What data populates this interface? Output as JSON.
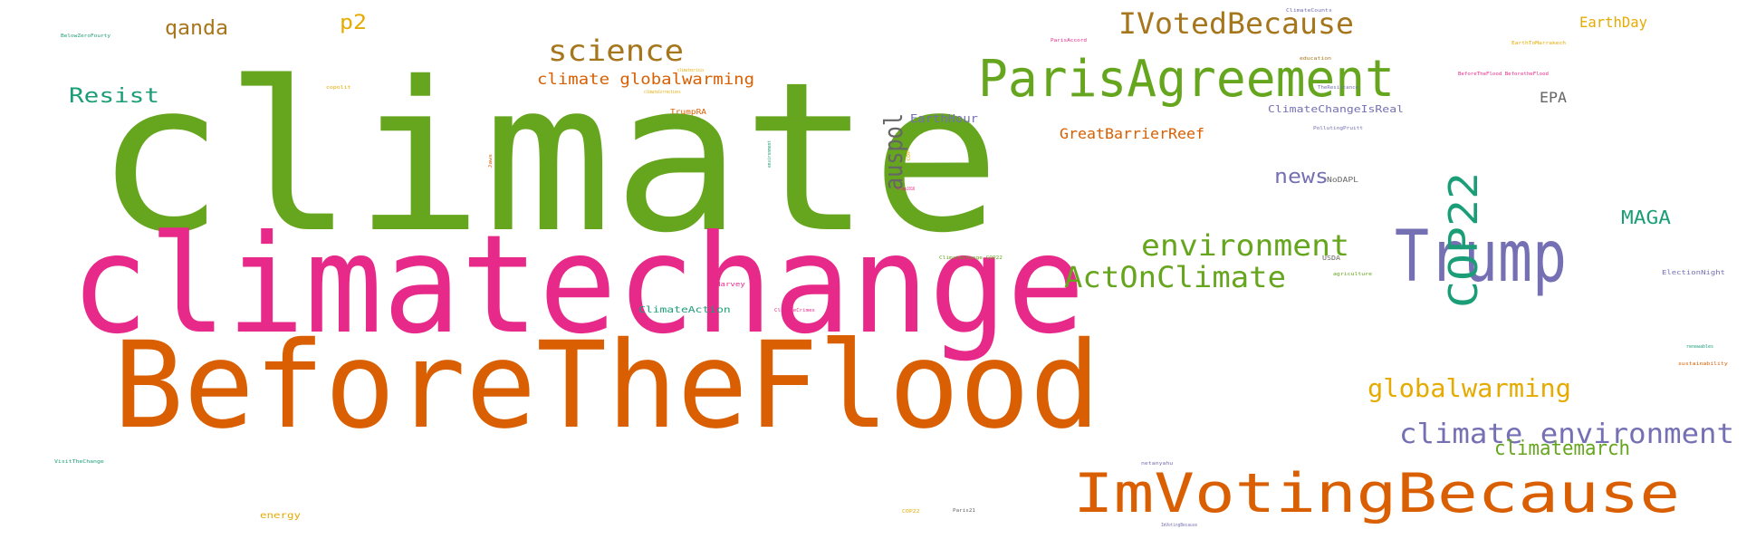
{
  "words": [
    {
      "text": "climate",
      "color": "#66a61e"
    },
    {
      "text": "climatechange",
      "color": "#e7298a"
    },
    {
      "text": "BeforeTheFlood",
      "color": "#d95f02"
    },
    {
      "text": "ParisAgreement",
      "color": "#66a61e"
    },
    {
      "text": "Trump",
      "color": "#7570b3"
    },
    {
      "text": "COP22",
      "color": "#1b9e77"
    },
    {
      "text": "ImVotingBecause",
      "color": "#d95f02"
    },
    {
      "text": "IVotedBecause",
      "color": "#a6761d"
    },
    {
      "text": "science",
      "color": "#a6761d"
    },
    {
      "text": "environment",
      "color": "#66a61e"
    },
    {
      "text": "ActOnClimate",
      "color": "#66a61e"
    },
    {
      "text": "climate environment",
      "color": "#7570b3"
    },
    {
      "text": "globalwarming",
      "color": "#e6ab02"
    },
    {
      "text": "auspol",
      "color": "#666666"
    },
    {
      "text": "news",
      "color": "#7570b3"
    },
    {
      "text": "MAGA",
      "color": "#1b9e77"
    },
    {
      "text": "climatemarch",
      "color": "#66a61e"
    },
    {
      "text": "Resist",
      "color": "#1b9e77"
    },
    {
      "text": "qanda",
      "color": "#a6761d"
    },
    {
      "text": "p2",
      "color": "#e6ab02"
    },
    {
      "text": "EarthDay",
      "color": "#e6ab02"
    },
    {
      "text": "EPA",
      "color": "#666666"
    },
    {
      "text": "climate globalwarming",
      "color": "#d95f02"
    },
    {
      "text": "GreatBarrierReef",
      "color": "#d95f02"
    },
    {
      "text": "EarthHour",
      "color": "#7570b3"
    },
    {
      "text": "ClimateChangeIsReal",
      "color": "#7570b3"
    },
    {
      "text": "TrumpRA",
      "color": "#d95f02"
    },
    {
      "text": "ClimateAction",
      "color": "#1b9e77"
    },
    {
      "text": "Harvey",
      "color": "#e7298a"
    },
    {
      "text": "energy",
      "color": "#e6ab02"
    },
    {
      "text": "NoDAPL",
      "color": "#666666"
    },
    {
      "text": "USDA",
      "color": "#666666"
    },
    {
      "text": "ElectionNight",
      "color": "#7570b3"
    },
    {
      "text": "ParisAccord",
      "color": "#e7298a"
    },
    {
      "text": "education",
      "color": "#a6761d"
    },
    {
      "text": "ClimateCounts",
      "color": "#7570b3"
    },
    {
      "text": "EarthToMarrakech",
      "color": "#e6ab02"
    },
    {
      "text": "BeforeTheFlood BeforetheFlood",
      "color": "#e7298a"
    },
    {
      "text": "TheResistance",
      "color": "#7570b3"
    },
    {
      "text": "PollutingPruitt",
      "color": "#7570b3"
    },
    {
      "text": "agriculture",
      "color": "#66a61e"
    },
    {
      "text": "ClimateChange COP22",
      "color": "#66a61e"
    },
    {
      "text": "ClimateCrimes",
      "color": "#e7298a"
    },
    {
      "text": "COP22",
      "color": "#e6ab02"
    },
    {
      "text": "Paris21",
      "color": "#666666"
    },
    {
      "text": "netanyahu",
      "color": "#7570b3"
    },
    {
      "text": "VisitTheChange",
      "color": "#1b9e77"
    },
    {
      "text": "renewables",
      "color": "#1b9e77"
    },
    {
      "text": "sustainability",
      "color": "#d95f02"
    },
    {
      "text": "BelowZeroFourty",
      "color": "#1b9e77"
    },
    {
      "text": "copolit",
      "color": "#e6ab02"
    },
    {
      "text": "climateCorrections",
      "color": "#e6ab02"
    },
    {
      "text": "climatecrisis",
      "color": "#e6ab02"
    },
    {
      "text": "environment",
      "color": "#1b9e77"
    },
    {
      "text": "COP",
      "color": "#e6ab02"
    },
    {
      "text": "Trump2016",
      "color": "#e7298a"
    },
    {
      "text": "Jaws",
      "color": "#d95f02"
    },
    {
      "text": "ImVotingBecause",
      "color": "#7570b3"
    }
  ]
}
